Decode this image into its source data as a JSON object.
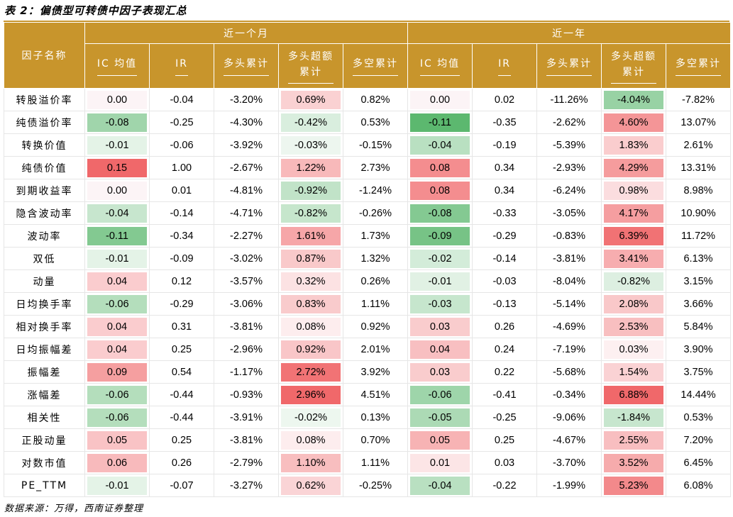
{
  "title": "表 2：偏债型可转债中因子表现汇总",
  "source": "数据来源：万得，西南证券整理",
  "header": {
    "factor_col": "因子名称",
    "group_month": "近一个月",
    "group_year": "近一年",
    "cols": [
      "IC 均值",
      "IR",
      "多头累计",
      "多头超额累计",
      "多空累计",
      "IC 均值",
      "IR",
      "多头累计",
      "多头超额累计",
      "多空累计"
    ]
  },
  "colors": {
    "header_bg": "#c8952c",
    "neutral": "#ffffff"
  },
  "rows": [
    {
      "name": "转股溢价率",
      "m_ic": "0.00",
      "m_ir": "-0.04",
      "m_long": "-3.20%",
      "m_excess": "0.69%",
      "m_ls": "0.82%",
      "y_ic": "0.00",
      "y_ir": "0.02",
      "y_long": "-11.26%",
      "y_excess": "-4.04%",
      "y_ls": "-7.82%"
    },
    {
      "name": "纯债溢价率",
      "m_ic": "-0.08",
      "m_ir": "-0.25",
      "m_long": "-4.30%",
      "m_excess": "-0.42%",
      "m_ls": "0.53%",
      "y_ic": "-0.11",
      "y_ir": "-0.35",
      "y_long": "-2.62%",
      "y_excess": "4.60%",
      "y_ls": "13.07%"
    },
    {
      "name": "转换价值",
      "m_ic": "-0.01",
      "m_ir": "-0.06",
      "m_long": "-3.92%",
      "m_excess": "-0.03%",
      "m_ls": "-0.15%",
      "y_ic": "-0.04",
      "y_ir": "-0.19",
      "y_long": "-5.39%",
      "y_excess": "1.83%",
      "y_ls": "2.61%"
    },
    {
      "name": "纯债价值",
      "m_ic": "0.15",
      "m_ir": "1.00",
      "m_long": "-2.67%",
      "m_excess": "1.22%",
      "m_ls": "2.73%",
      "y_ic": "0.08",
      "y_ir": "0.34",
      "y_long": "-2.93%",
      "y_excess": "4.29%",
      "y_ls": "13.31%"
    },
    {
      "name": "到期收益率",
      "m_ic": "0.00",
      "m_ir": "0.01",
      "m_long": "-4.81%",
      "m_excess": "-0.92%",
      "m_ls": "-1.24%",
      "y_ic": "0.08",
      "y_ir": "0.34",
      "y_long": "-6.24%",
      "y_excess": "0.98%",
      "y_ls": "8.98%"
    },
    {
      "name": "隐含波动率",
      "m_ic": "-0.04",
      "m_ir": "-0.14",
      "m_long": "-4.71%",
      "m_excess": "-0.82%",
      "m_ls": "-0.26%",
      "y_ic": "-0.08",
      "y_ir": "-0.33",
      "y_long": "-3.05%",
      "y_excess": "4.17%",
      "y_ls": "10.90%"
    },
    {
      "name": "波动率",
      "m_ic": "-0.11",
      "m_ir": "-0.34",
      "m_long": "-2.27%",
      "m_excess": "1.61%",
      "m_ls": "1.73%",
      "y_ic": "-0.09",
      "y_ir": "-0.29",
      "y_long": "-0.83%",
      "y_excess": "6.39%",
      "y_ls": "11.72%"
    },
    {
      "name": "双低",
      "m_ic": "-0.01",
      "m_ir": "-0.09",
      "m_long": "-3.02%",
      "m_excess": "0.87%",
      "m_ls": "1.32%",
      "y_ic": "-0.02",
      "y_ir": "-0.14",
      "y_long": "-3.81%",
      "y_excess": "3.41%",
      "y_ls": "6.13%"
    },
    {
      "name": "动量",
      "m_ic": "0.04",
      "m_ir": "0.12",
      "m_long": "-3.57%",
      "m_excess": "0.32%",
      "m_ls": "0.26%",
      "y_ic": "-0.01",
      "y_ir": "-0.03",
      "y_long": "-8.04%",
      "y_excess": "-0.82%",
      "y_ls": "3.15%"
    },
    {
      "name": "日均换手率",
      "m_ic": "-0.06",
      "m_ir": "-0.29",
      "m_long": "-3.06%",
      "m_excess": "0.83%",
      "m_ls": "1.11%",
      "y_ic": "-0.03",
      "y_ir": "-0.13",
      "y_long": "-5.14%",
      "y_excess": "2.08%",
      "y_ls": "3.66%"
    },
    {
      "name": "相对换手率",
      "m_ic": "0.04",
      "m_ir": "0.31",
      "m_long": "-3.81%",
      "m_excess": "0.08%",
      "m_ls": "0.92%",
      "y_ic": "0.03",
      "y_ir": "0.26",
      "y_long": "-4.69%",
      "y_excess": "2.53%",
      "y_ls": "5.84%"
    },
    {
      "name": "日均振幅差",
      "m_ic": "0.04",
      "m_ir": "0.25",
      "m_long": "-2.96%",
      "m_excess": "0.92%",
      "m_ls": "2.01%",
      "y_ic": "0.04",
      "y_ir": "0.24",
      "y_long": "-7.19%",
      "y_excess": "0.03%",
      "y_ls": "3.90%"
    },
    {
      "name": "振幅差",
      "m_ic": "0.09",
      "m_ir": "0.54",
      "m_long": "-1.17%",
      "m_excess": "2.72%",
      "m_ls": "3.92%",
      "y_ic": "0.03",
      "y_ir": "0.22",
      "y_long": "-5.68%",
      "y_excess": "1.54%",
      "y_ls": "3.75%"
    },
    {
      "name": "涨幅差",
      "m_ic": "-0.06",
      "m_ir": "-0.44",
      "m_long": "-0.93%",
      "m_excess": "2.96%",
      "m_ls": "4.51%",
      "y_ic": "-0.06",
      "y_ir": "-0.41",
      "y_long": "-0.34%",
      "y_excess": "6.88%",
      "y_ls": "14.44%"
    },
    {
      "name": "相关性",
      "m_ic": "-0.06",
      "m_ir": "-0.44",
      "m_long": "-3.91%",
      "m_excess": "-0.02%",
      "m_ls": "0.13%",
      "y_ic": "-0.05",
      "y_ir": "-0.25",
      "y_long": "-9.06%",
      "y_excess": "-1.84%",
      "y_ls": "0.53%"
    },
    {
      "name": "正股动量",
      "m_ic": "0.05",
      "m_ir": "0.25",
      "m_long": "-3.81%",
      "m_excess": "0.08%",
      "m_ls": "0.70%",
      "y_ic": "0.05",
      "y_ir": "0.25",
      "y_long": "-4.67%",
      "y_excess": "2.55%",
      "y_ls": "7.20%"
    },
    {
      "name": "对数市值",
      "m_ic": "0.06",
      "m_ir": "0.26",
      "m_long": "-2.79%",
      "m_excess": "1.10%",
      "m_ls": "1.11%",
      "y_ic": "0.01",
      "y_ir": "0.03",
      "y_long": "-3.70%",
      "y_excess": "3.52%",
      "y_ls": "6.45%"
    },
    {
      "name": "PE_TTM",
      "m_ic": "-0.01",
      "m_ir": "-0.07",
      "m_long": "-3.27%",
      "m_excess": "0.62%",
      "m_ls": "-0.25%",
      "y_ic": "-0.04",
      "y_ir": "-0.22",
      "y_long": "-1.99%",
      "y_excess": "5.23%",
      "y_ls": "6.08%"
    }
  ]
}
